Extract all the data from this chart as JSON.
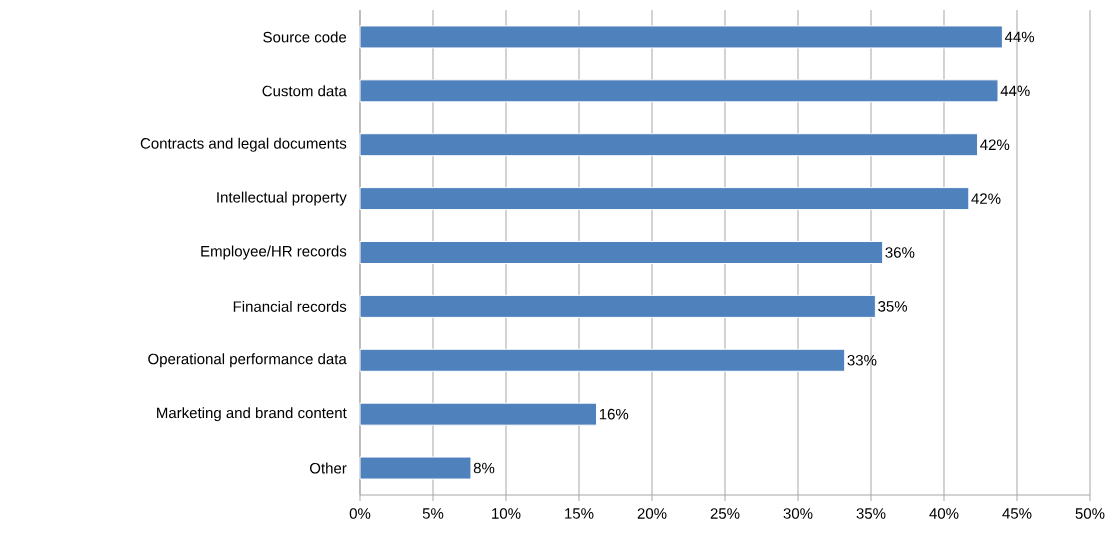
{
  "chart_data": {
    "type": "bar",
    "orientation": "horizontal",
    "categories": [
      "Source code",
      "Custom data",
      "Contracts and legal documents",
      "Intellectual property",
      "Employee/HR records",
      "Financial records",
      "Operational performance data",
      "Marketing and brand content",
      "Other"
    ],
    "values": [
      44.0,
      43.7,
      42.3,
      41.7,
      35.8,
      35.3,
      33.2,
      16.2,
      7.6
    ],
    "value_labels": [
      "44%",
      "44%",
      "42%",
      "42%",
      "36%",
      "35%",
      "33%",
      "16%",
      "8%"
    ],
    "color": "#4f81bd",
    "xlim": [
      0,
      50
    ],
    "xticks": [
      {
        "value": 0,
        "label": "0%"
      },
      {
        "value": 5,
        "label": "5%"
      },
      {
        "value": 10,
        "label": "10%"
      },
      {
        "value": 15,
        "label": "15%"
      },
      {
        "value": 20,
        "label": "20%"
      },
      {
        "value": 25,
        "label": "25%"
      },
      {
        "value": 30,
        "label": "30%"
      },
      {
        "value": 35,
        "label": "35%"
      },
      {
        "value": 40,
        "label": "40%"
      },
      {
        "value": 45,
        "label": "45%"
      },
      {
        "value": 50,
        "label": "50%"
      }
    ],
    "grid": "x"
  }
}
